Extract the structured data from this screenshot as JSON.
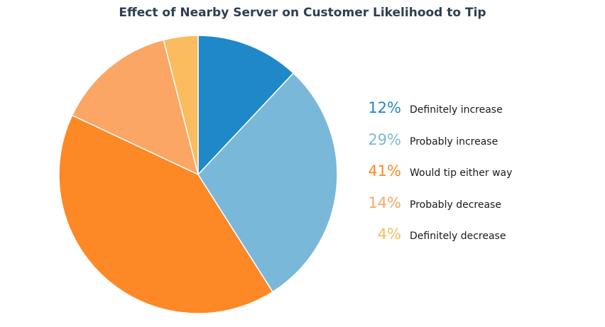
{
  "chart_data": {
    "type": "pie",
    "title": "Effect of Nearby Server on Customer Likelihood to Tip",
    "slices": [
      {
        "label": "Definitely increase",
        "pct_label": "12%",
        "value": 12,
        "color": "#1f88c8"
      },
      {
        "label": "Probably increase",
        "pct_label": "29%",
        "value": 29,
        "color": "#7ab8d9"
      },
      {
        "label": "Would tip either way",
        "pct_label": "41%",
        "value": 41,
        "color": "#fd8826"
      },
      {
        "label": "Probably decrease",
        "pct_label": "14%",
        "value": 14,
        "color": "#fba665"
      },
      {
        "label": "Definitely decrease",
        "pct_label": "4%",
        "value": 4,
        "color": "#fbbb5f"
      }
    ],
    "start_angle": "12 o'clock",
    "direction": "clockwise",
    "legend_placement": "right"
  }
}
